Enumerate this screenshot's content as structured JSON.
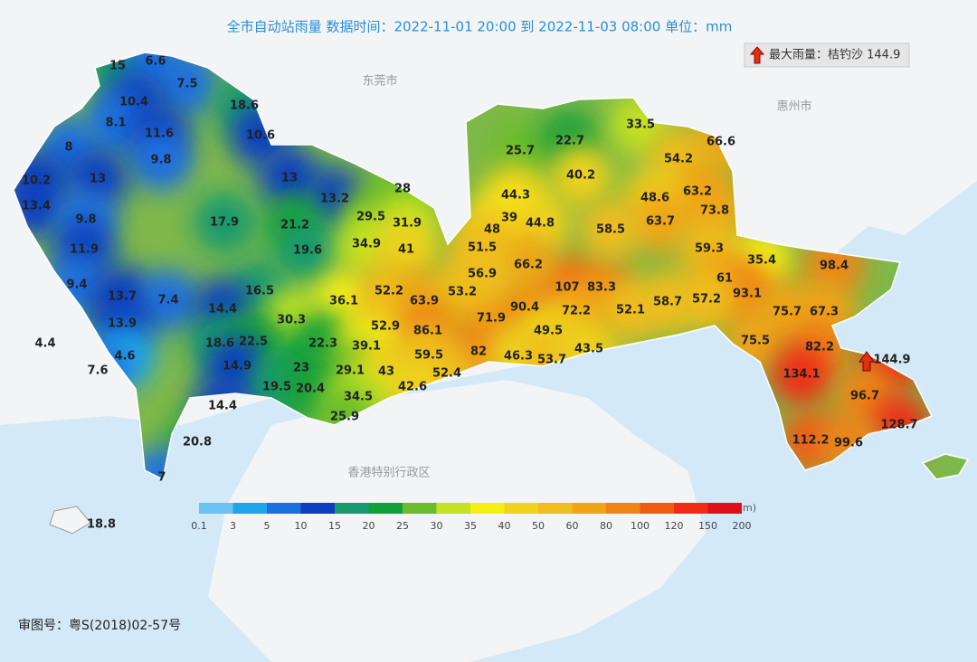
{
  "map": {
    "title": "全市自动站雨量  数据时间：2022-11-01 20:00 到 2022-11-03 08:00  单位：mm",
    "max_label": "最大雨量：桔钓沙 144.9",
    "place_labels": [
      "东莞市",
      "惠州市",
      "香港特别行政区"
    ],
    "legend": {
      "unit": "(mm)",
      "ticks": [
        0.1,
        3,
        5,
        10,
        15,
        20,
        25,
        30,
        35,
        40,
        50,
        60,
        80,
        100,
        120,
        150,
        200
      ],
      "colors": [
        "#69c3f2",
        "#1fa5ec",
        "#1b6fe0",
        "#0e3fbf",
        "#169a6e",
        "#12a03a",
        "#6abd2a",
        "#c4e222",
        "#f5ef16",
        "#f0d21c",
        "#f0bd1e",
        "#f0a416",
        "#f08416",
        "#f05c14",
        "#f02d14",
        "#e0101a"
      ]
    },
    "station_values": [
      15,
      6.6,
      7.5,
      10.4,
      18.6,
      8.1,
      11.6,
      10.6,
      8,
      9.8,
      10.2,
      13,
      13,
      13.4,
      13.2,
      28,
      29.5,
      31.9,
      21.2,
      17.9,
      9.8,
      11.9,
      19.6,
      34.9,
      41,
      16.5,
      9.4,
      13.7,
      7.4,
      14.4,
      30.3,
      36.1,
      52.2,
      63.9,
      53.2,
      13.9,
      4.4,
      18.6,
      22.5,
      22.3,
      52.9,
      86.1,
      71.9,
      90.4,
      107,
      83.3,
      72.2,
      49.5,
      39.1,
      4.6,
      7.6,
      14.9,
      23,
      29.1,
      43,
      59.5,
      82,
      46.3,
      53.7,
      43.5,
      52.4,
      19.5,
      20.4,
      42.6,
      34.5,
      14.4,
      25.9,
      20.8,
      7,
      18.8,
      25.7,
      22.7,
      33.5,
      66.6,
      40.2,
      54.2,
      44.3,
      63.2,
      48.6,
      39,
      48,
      44.8,
      73.8,
      63.7,
      58.5,
      51.5,
      59.3,
      35.4,
      66.2,
      56.9,
      98.4,
      61,
      93.1,
      57.2,
      58.7,
      52.1,
      75.7,
      67.3,
      75.5,
      82.2,
      144.9,
      134.1,
      96.7,
      128.7,
      112.2,
      99.6
    ],
    "footer": "审图号：粤S(2018)02-57号"
  }
}
